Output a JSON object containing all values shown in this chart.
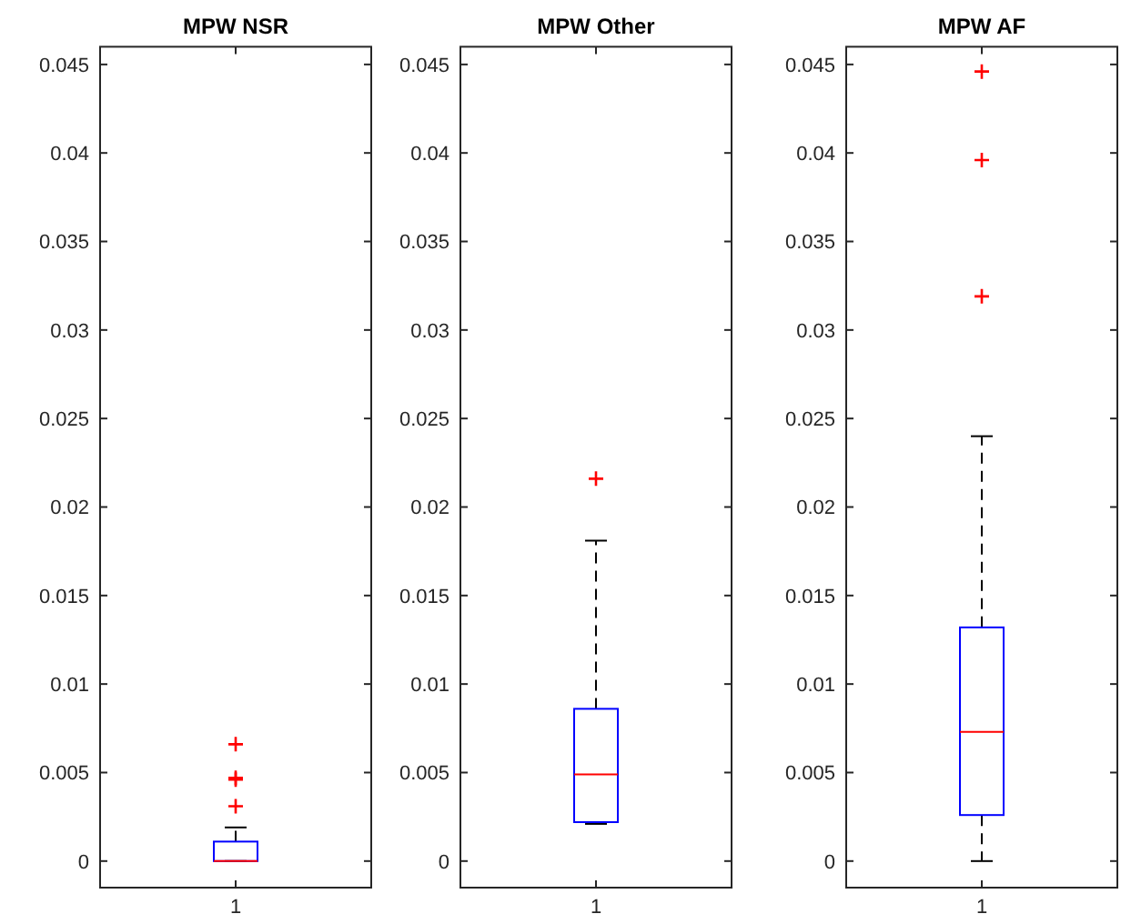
{
  "chart_data": [
    {
      "type": "box",
      "title": "MPW NSR",
      "categories": [
        "1"
      ],
      "ylim": [
        -0.0015,
        0.046
      ],
      "yticks": [
        0,
        0.005,
        0.01,
        0.015,
        0.02,
        0.025,
        0.03,
        0.035,
        0.04,
        0.045
      ],
      "color": "#0000ff",
      "boxes": [
        {
          "low": 0,
          "q1": 0,
          "median": 0,
          "q3": 0.0011,
          "high": 0.0019,
          "outliers": [
            0.0031,
            0.0046,
            0.0047,
            0.0066
          ]
        }
      ]
    },
    {
      "type": "box",
      "title": "MPW Other",
      "categories": [
        "1"
      ],
      "ylim": [
        -0.0015,
        0.046
      ],
      "yticks": [
        0,
        0.005,
        0.01,
        0.015,
        0.02,
        0.025,
        0.03,
        0.035,
        0.04,
        0.045
      ],
      "color": "#0000ff",
      "boxes": [
        {
          "low": 0.0021,
          "q1": 0.0022,
          "median": 0.0049,
          "q3": 0.0086,
          "high": 0.0181,
          "outliers": [
            0.0216
          ]
        }
      ]
    },
    {
      "type": "box",
      "title": "MPW AF",
      "categories": [
        "1"
      ],
      "ylim": [
        -0.0015,
        0.046
      ],
      "yticks": [
        0,
        0.005,
        0.01,
        0.015,
        0.02,
        0.025,
        0.03,
        0.035,
        0.04,
        0.045
      ],
      "color": "#0000ff",
      "boxes": [
        {
          "low": 0,
          "q1": 0.0026,
          "median": 0.0073,
          "q3": 0.0132,
          "high": 0.024,
          "outliers": [
            0.0319,
            0.0396,
            0.0446
          ]
        }
      ]
    }
  ]
}
